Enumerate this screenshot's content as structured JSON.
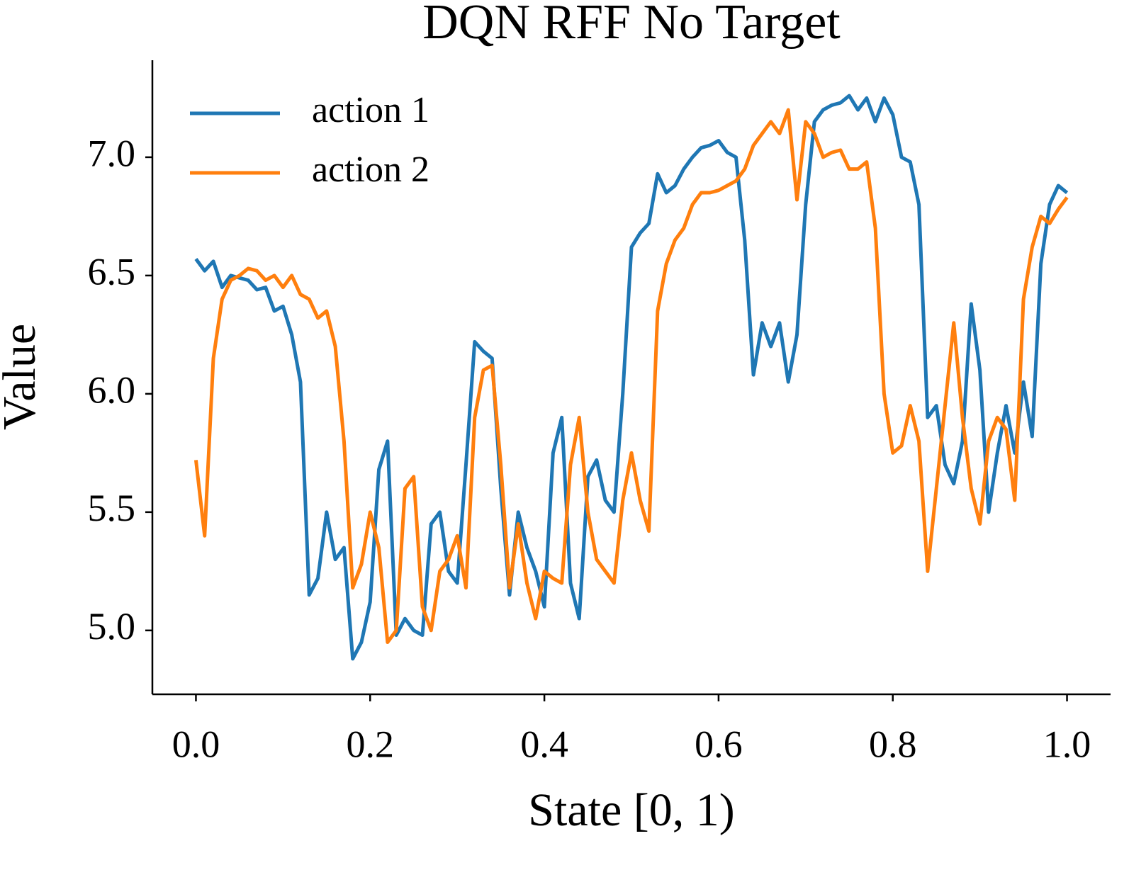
{
  "chart_data": {
    "type": "line",
    "title": "DQN RFF No Target",
    "xlabel": "State [0, 1)",
    "ylabel": "Value",
    "x": [
      0,
      0.01,
      0.02,
      0.03,
      0.04,
      0.05,
      0.06,
      0.07,
      0.08,
      0.09,
      0.1,
      0.11,
      0.12,
      0.13,
      0.14,
      0.15,
      0.16,
      0.17,
      0.18,
      0.19,
      0.2,
      0.21,
      0.22,
      0.23,
      0.24,
      0.25,
      0.26,
      0.27,
      0.28,
      0.29,
      0.3,
      0.31,
      0.32,
      0.33,
      0.34,
      0.35,
      0.36,
      0.37,
      0.38,
      0.39,
      0.4,
      0.41,
      0.42,
      0.43,
      0.44,
      0.45,
      0.46,
      0.47,
      0.48,
      0.49,
      0.5,
      0.51,
      0.52,
      0.53,
      0.54,
      0.55,
      0.56,
      0.57,
      0.58,
      0.59,
      0.6,
      0.61,
      0.62,
      0.63,
      0.64,
      0.65,
      0.66,
      0.67,
      0.68,
      0.69,
      0.7,
      0.71,
      0.72,
      0.73,
      0.74,
      0.75,
      0.76,
      0.77,
      0.78,
      0.79,
      0.8,
      0.81,
      0.82,
      0.83,
      0.84,
      0.85,
      0.86,
      0.87,
      0.88,
      0.89,
      0.9,
      0.91,
      0.92,
      0.93,
      0.94,
      0.95,
      0.96,
      0.97,
      0.98,
      0.99,
      1
    ],
    "series": [
      {
        "name": "action 1",
        "color": "#1f77b4",
        "values": [
          6.57,
          6.52,
          6.56,
          6.45,
          6.5,
          6.49,
          6.48,
          6.44,
          6.45,
          6.35,
          6.37,
          6.25,
          6.05,
          5.15,
          5.22,
          5.5,
          5.3,
          5.35,
          4.88,
          4.95,
          5.12,
          5.68,
          5.8,
          4.98,
          5.05,
          5.0,
          4.98,
          5.45,
          5.5,
          5.25,
          5.2,
          5.7,
          6.22,
          6.18,
          6.15,
          5.6,
          5.15,
          5.5,
          5.35,
          5.25,
          5.1,
          5.75,
          5.9,
          5.2,
          5.05,
          5.65,
          5.72,
          5.55,
          5.5,
          6.0,
          6.62,
          6.68,
          6.72,
          6.93,
          6.85,
          6.88,
          6.95,
          7.0,
          7.04,
          7.05,
          7.07,
          7.02,
          7.0,
          6.65,
          6.08,
          6.3,
          6.2,
          6.3,
          6.05,
          6.25,
          6.8,
          7.15,
          7.2,
          7.22,
          7.23,
          7.26,
          7.2,
          7.25,
          7.15,
          7.25,
          7.18,
          7.0,
          6.98,
          6.8,
          5.9,
          5.95,
          5.7,
          5.62,
          5.8,
          6.38,
          6.1,
          5.5,
          5.75,
          5.95,
          5.75,
          6.05,
          5.82,
          6.55,
          6.8,
          6.88,
          6.85
        ]
      },
      {
        "name": "action 2",
        "color": "#ff7f0e",
        "values": [
          5.72,
          5.4,
          6.15,
          6.4,
          6.48,
          6.5,
          6.53,
          6.52,
          6.48,
          6.5,
          6.45,
          6.5,
          6.42,
          6.4,
          6.32,
          6.35,
          6.2,
          5.8,
          5.18,
          5.28,
          5.5,
          5.35,
          4.95,
          5.0,
          5.6,
          5.65,
          5.1,
          5.0,
          5.25,
          5.3,
          5.4,
          5.18,
          5.9,
          6.1,
          6.12,
          5.7,
          5.18,
          5.45,
          5.2,
          5.05,
          5.25,
          5.22,
          5.2,
          5.7,
          5.9,
          5.5,
          5.3,
          5.25,
          5.2,
          5.55,
          5.75,
          5.55,
          5.42,
          6.35,
          6.55,
          6.65,
          6.7,
          6.8,
          6.85,
          6.85,
          6.86,
          6.88,
          6.9,
          6.95,
          7.05,
          7.1,
          7.15,
          7.1,
          7.2,
          6.82,
          7.15,
          7.1,
          7.0,
          7.02,
          7.03,
          6.95,
          6.95,
          6.98,
          6.7,
          6.0,
          5.75,
          5.78,
          5.95,
          5.8,
          5.25,
          5.6,
          5.95,
          6.3,
          5.9,
          5.6,
          5.45,
          5.8,
          5.9,
          5.85,
          5.55,
          6.4,
          6.62,
          6.75,
          6.72,
          6.78,
          6.83
        ]
      }
    ],
    "xlim": [
      -0.05,
      1.05
    ],
    "xticks": [
      {
        "value": 0,
        "label": "0.0"
      },
      0.2,
      0.4,
      0.6,
      0.8,
      {
        "value": 1,
        "label": "1.0"
      }
    ],
    "ylim": [
      4.73,
      7.41
    ],
    "yticks": [
      {
        "value": 5,
        "label": "5.0"
      },
      5.5,
      {
        "value": 6,
        "label": "6.0"
      },
      6.5,
      {
        "value": 7,
        "label": "7.0"
      }
    ],
    "legend": "upper left",
    "grid": false
  }
}
